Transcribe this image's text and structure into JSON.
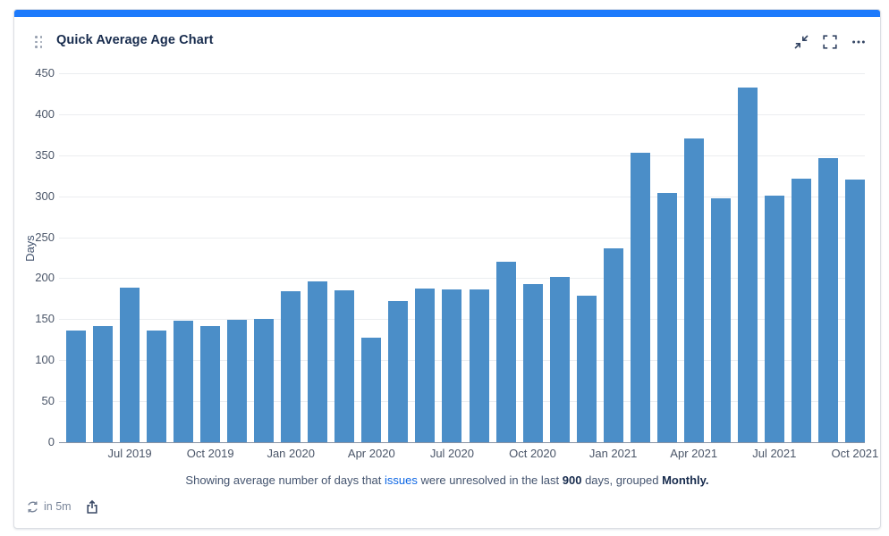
{
  "header": {
    "title": "Quick Average Age Chart",
    "icons": [
      "drag-handle-icon",
      "collapse-icon",
      "fullscreen-icon",
      "more-icon"
    ]
  },
  "theme": {
    "accent": "#1d7afc",
    "bar_color": "#4b8ec8",
    "link_color": "#0c66e4",
    "title_color": "#172b4d",
    "grid_color": "#ebedf0",
    "axis_color": "#8993a4",
    "card_border": "#dcdfe4"
  },
  "chart_data": {
    "type": "bar",
    "title": "",
    "xlabel": "",
    "ylabel": "Days",
    "ylim": [
      0,
      450
    ],
    "y_tick_step": 50,
    "grid": true,
    "legend": "none",
    "categories": [
      "May 2019",
      "Jun 2019",
      "Jul 2019",
      "Aug 2019",
      "Sep 2019",
      "Oct 2019",
      "Nov 2019",
      "Dec 2019",
      "Jan 2020",
      "Feb 2020",
      "Mar 2020",
      "Apr 2020",
      "May 2020",
      "Jun 2020",
      "Jul 2020",
      "Aug 2020",
      "Sep 2020",
      "Oct 2020",
      "Nov 2020",
      "Dec 2020",
      "Jan 2021",
      "Feb 2021",
      "Mar 2021",
      "Apr 2021",
      "May 2021",
      "Jun 2021",
      "Jul 2021",
      "Aug 2021",
      "Sep 2021",
      "Oct 2021"
    ],
    "values": [
      136,
      142,
      189,
      136,
      148,
      142,
      149,
      150,
      184,
      196,
      185,
      127,
      172,
      188,
      186,
      186,
      220,
      193,
      202,
      179,
      236,
      353,
      304,
      371,
      297,
      433,
      301,
      322,
      346,
      320
    ],
    "x_tick_labels": [
      "Jul 2019",
      "Oct 2019",
      "Jan 2020",
      "Apr 2020",
      "Jul 2020",
      "Oct 2020",
      "Jan 2021",
      "Apr 2021",
      "Jul 2021",
      "Oct 2021"
    ],
    "x_tick_start_index": 2,
    "x_tick_every": 3
  },
  "caption": {
    "parts": [
      {
        "t": "Showing average number of days that ",
        "style": "plain"
      },
      {
        "t": "issues",
        "style": "link"
      },
      {
        "t": " were unresolved in the last ",
        "style": "plain"
      },
      {
        "t": "900",
        "style": "bold"
      },
      {
        "t": " days, grouped ",
        "style": "plain"
      },
      {
        "t": "Monthly.",
        "style": "bold"
      }
    ]
  },
  "status": {
    "refresh_text": "in 5m",
    "refresh_icon": "refresh-icon",
    "share_icon": "share-icon"
  }
}
